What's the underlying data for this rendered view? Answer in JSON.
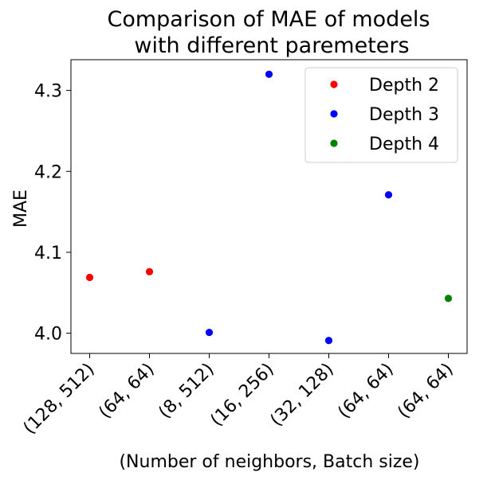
{
  "chart_data": {
    "type": "scatter",
    "title": [
      "Comparison of MAE of models",
      "with different paremeters"
    ],
    "xlabel": "(Number of neighbors, Batch size)",
    "ylabel": "MAE",
    "categories": [
      "(128, 512)",
      "(64, 64)",
      "(8, 512)",
      "(16, 256)",
      "(32, 128)",
      "(64, 64)",
      "(64, 64)"
    ],
    "yticks": [
      "4.0",
      "4.1",
      "4.2",
      "4.3"
    ],
    "ylim": [
      3.975,
      4.338
    ],
    "grid": false,
    "legend_position": "top-right",
    "series": [
      {
        "name": "Depth 2",
        "color": "#ff0000",
        "points": [
          {
            "x": 0,
            "y": 4.069
          },
          {
            "x": 1,
            "y": 4.076
          }
        ]
      },
      {
        "name": "Depth 3",
        "color": "#0000ff",
        "points": [
          {
            "x": 2,
            "y": 4.001
          },
          {
            "x": 3,
            "y": 4.32
          },
          {
            "x": 4,
            "y": 3.991
          },
          {
            "x": 5,
            "y": 4.171
          }
        ]
      },
      {
        "name": "Depth 4",
        "color": "#008000",
        "points": [
          {
            "x": 6,
            "y": 4.043
          }
        ]
      }
    ]
  }
}
